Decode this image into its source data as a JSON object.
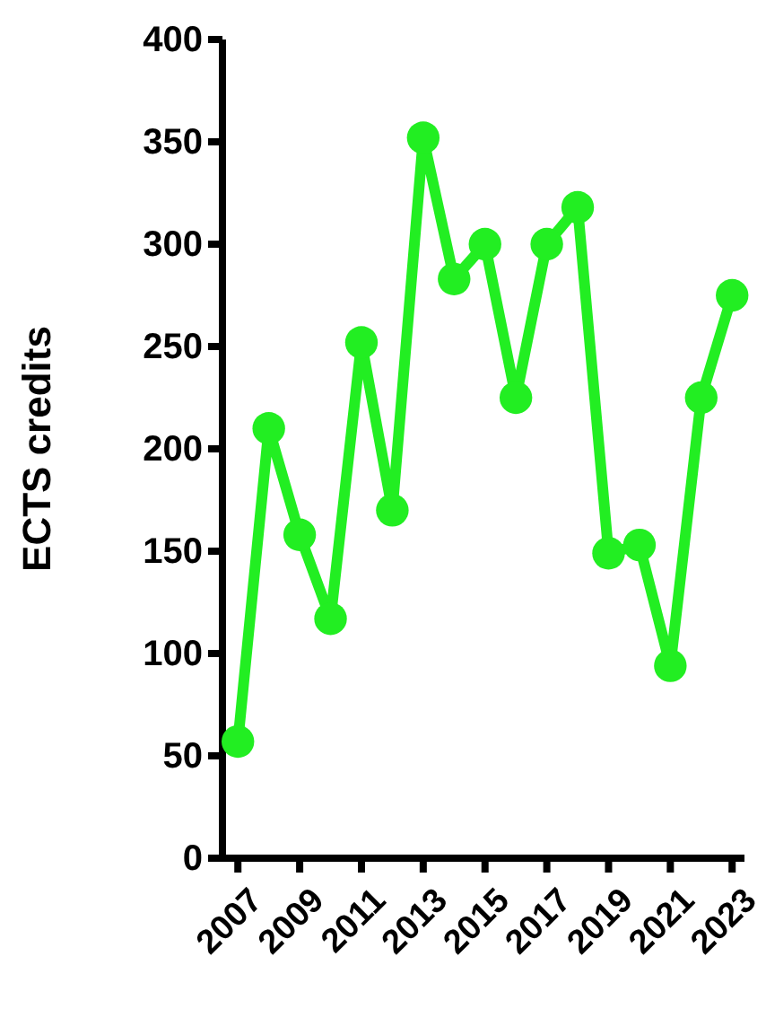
{
  "chart_data": {
    "type": "line",
    "ylabel": "ECTS credits",
    "x": [
      2007,
      2008,
      2009,
      2010,
      2011,
      2012,
      2013,
      2014,
      2015,
      2016,
      2017,
      2018,
      2019,
      2020,
      2021,
      2022,
      2023
    ],
    "values": [
      57,
      210,
      158,
      117,
      252,
      170,
      352,
      283,
      300,
      225,
      300,
      318,
      149,
      153,
      94,
      225,
      275
    ],
    "color": "#22ee22",
    "marker": "circle",
    "line_style": "solid",
    "xlim": [
      2006.5,
      2023.4
    ],
    "xticks": [
      2007,
      2009,
      2011,
      2013,
      2015,
      2017,
      2019,
      2021,
      2023
    ],
    "ylim": [
      0,
      400
    ],
    "yticks": [
      0,
      50,
      100,
      150,
      200,
      250,
      300,
      350,
      400
    ],
    "grid": false
  }
}
